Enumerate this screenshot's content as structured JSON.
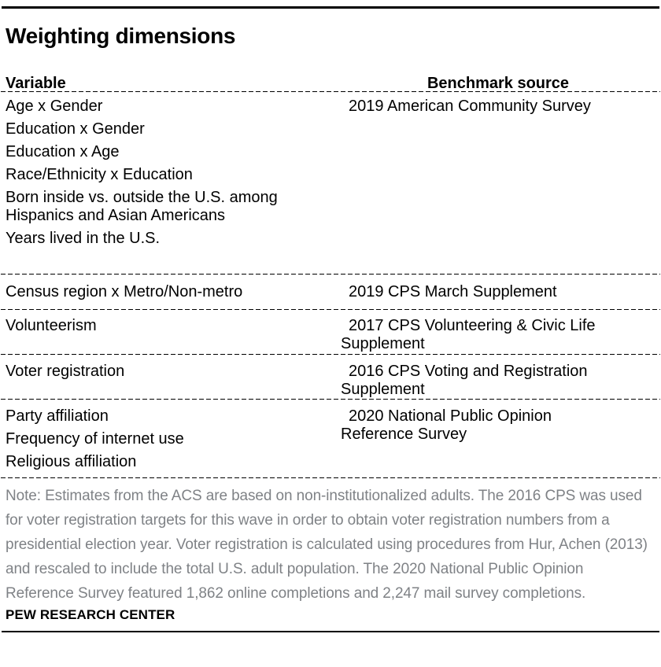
{
  "title": "Weighting dimensions",
  "table": {
    "col_variable": "Variable",
    "col_source": "Benchmark source",
    "groups": [
      {
        "variables": [
          "Age x Gender",
          "Education x Gender",
          "Education x Age",
          "Race/Ethnicity x Education",
          "Born inside vs. outside the U.S. among Hispanics and Asian Americans",
          "Years lived in the U.S."
        ],
        "source": "2019 American Community Survey"
      },
      {
        "variables": [
          "Census region x Metro/Non-metro"
        ],
        "source": "2019 CPS March Supplement"
      },
      {
        "variables": [
          "Volunteerism"
        ],
        "source": "2017 CPS Volunteering & Civic Life Supplement"
      },
      {
        "variables": [
          "Voter registration"
        ],
        "source": "2016 CPS Voting and Registration Supplement"
      },
      {
        "variables": [
          "Party affiliation",
          "Frequency of internet use",
          "Religious affiliation"
        ],
        "source": "2020 National Public Opinion Reference Survey"
      }
    ]
  },
  "note": "Note: Estimates from the ACS are based on non-institutionalized adults.  The 2016 CPS was used for voter registration targets for this wave in order to obtain voter registration numbers from a presidential election year. Voter registration is calculated using procedures from Hur, Achen (2013) and rescaled to include the total U.S. adult population. The 2020 National Public Opinion Reference Survey featured 1,862 online completions and 2,247 mail survey completions.",
  "footer": "PEW RESEARCH CENTER",
  "colors": {
    "text": "#000000",
    "note_text": "#7f8286",
    "rule": "#000000",
    "background": "#ffffff"
  }
}
